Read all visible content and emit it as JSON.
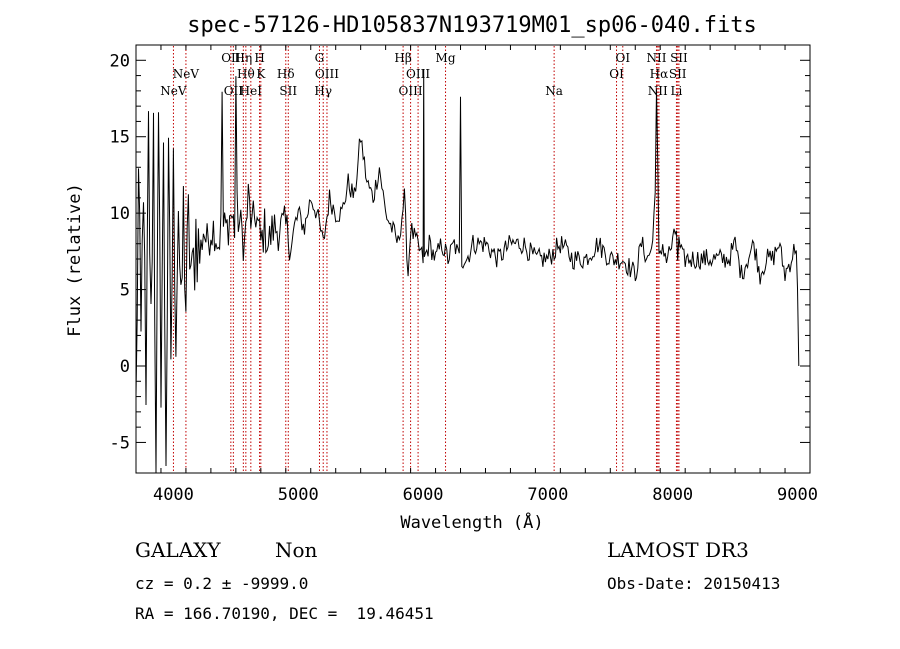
{
  "chart_data": {
    "type": "line",
    "title": "spec-57126-HD105837N193719M01_sp06-040.fits",
    "xlabel": "Wavelength (Å)",
    "ylabel": "Flux (relative)",
    "xlim": [
      3700,
      9100
    ],
    "ylim": [
      -7,
      21
    ],
    "xticks": [
      4000,
      5000,
      6000,
      7000,
      8000,
      9000
    ],
    "yticks": [
      -5,
      0,
      5,
      10,
      15,
      20
    ],
    "grid": false,
    "series": [
      {
        "name": "spectrum",
        "color": "#000000",
        "x": [
          3700,
          3720,
          3740,
          3760,
          3780,
          3800,
          3820,
          3840,
          3860,
          3880,
          3900,
          3920,
          3940,
          3960,
          3980,
          4000,
          4020,
          4040,
          4060,
          4080,
          4100,
          4120,
          4150,
          4180,
          4210,
          4240,
          4270,
          4300,
          4330,
          4360,
          4380,
          4390,
          4400,
          4430,
          4460,
          4490,
          4500,
          4510,
          4540,
          4570,
          4600,
          4630,
          4660,
          4700,
          4730,
          4760,
          4800,
          4850,
          4900,
          4950,
          5000,
          5050,
          5100,
          5150,
          5200,
          5250,
          5300,
          5350,
          5400,
          5450,
          5500,
          5550,
          5600,
          5650,
          5700,
          5750,
          5800,
          5850,
          5880,
          5900,
          5950,
          6000,
          6005,
          6010,
          6050,
          6100,
          6150,
          6200,
          6250,
          6290,
          6300,
          6310,
          6350,
          6400,
          6500,
          6600,
          6700,
          6800,
          6900,
          7000,
          7100,
          7200,
          7300,
          7400,
          7500,
          7600,
          7700,
          7750,
          7800,
          7840,
          7860,
          7870,
          7880,
          7890,
          7900,
          7920,
          7950,
          8000,
          8030,
          8040,
          8050,
          8080,
          8150,
          8250,
          8350,
          8450,
          8500,
          8550,
          8600,
          8650,
          8700,
          8750,
          8800,
          8850,
          8900,
          8950,
          8990,
          9000,
          9010
        ],
        "values": [
          -3,
          12,
          1,
          13,
          -4,
          15,
          2,
          16,
          -6,
          14,
          0,
          13,
          -5,
          12,
          1,
          12,
          3,
          11,
          2,
          10,
          4,
          9,
          5,
          9,
          7,
          9,
          8,
          9,
          9,
          8,
          9,
          18,
          9,
          9,
          10,
          9,
          19,
          10,
          9,
          8,
          11,
          9,
          10,
          8,
          9,
          8,
          9,
          9,
          9,
          8,
          10,
          9,
          11,
          10,
          8,
          11,
          10,
          10,
          12,
          11,
          15,
          12,
          11,
          13,
          10,
          9,
          8,
          11,
          6,
          9,
          8,
          7,
          19,
          7,
          8,
          7,
          8,
          7,
          8,
          7,
          18,
          7,
          7,
          8,
          8,
          7,
          8,
          8,
          7,
          7,
          8,
          7,
          7,
          8,
          7,
          7,
          6,
          8,
          7,
          8,
          12,
          18,
          13,
          7,
          7,
          8,
          7,
          8,
          9,
          7,
          8,
          7,
          7,
          7,
          7,
          7,
          8,
          6,
          7,
          8,
          6,
          7,
          7,
          8,
          6,
          7,
          8,
          5,
          0
        ],
        "values_note": "approximate; spectrum is noisy and rendered with added jitter from these anchor points"
      }
    ],
    "emission_lines": [
      {
        "name": "NeV",
        "wave": 4000,
        "row": 2
      },
      {
        "name": "NeV",
        "wave": 4100,
        "row": 1
      },
      {
        "name": "OII",
        "wave": 4460,
        "row": 0
      },
      {
        "name": "OII",
        "wave": 4480,
        "row": 2
      },
      {
        "name": "Hη",
        "wave": 4560,
        "row": 0
      },
      {
        "name": "Hθ",
        "wave": 4580,
        "row": 1
      },
      {
        "name": "HeI",
        "wave": 4620,
        "row": 2
      },
      {
        "name": "H",
        "wave": 4690,
        "row": 0
      },
      {
        "name": "K",
        "wave": 4700,
        "row": 1
      },
      {
        "name": "Hδ",
        "wave": 4900,
        "row": 1
      },
      {
        "name": "SII",
        "wave": 4920,
        "row": 2
      },
      {
        "name": "G",
        "wave": 5170,
        "row": 0
      },
      {
        "name": "OIII",
        "wave": 5230,
        "row": 1
      },
      {
        "name": "Hγ",
        "wave": 5200,
        "row": 2
      },
      {
        "name": "Hβ",
        "wave": 5840,
        "row": 0
      },
      {
        "name": "OIII",
        "wave": 5960,
        "row": 1
      },
      {
        "name": "OIII",
        "wave": 5900,
        "row": 2
      },
      {
        "name": "Mg",
        "wave": 6180,
        "row": 0
      },
      {
        "name": "Na",
        "wave": 7050,
        "row": 2
      },
      {
        "name": "OI",
        "wave": 7600,
        "row": 0
      },
      {
        "name": "OI",
        "wave": 7550,
        "row": 1
      },
      {
        "name": "NII",
        "wave": 7870,
        "row": 0
      },
      {
        "name": "Hα",
        "wave": 7890,
        "row": 1
      },
      {
        "name": "NII",
        "wave": 7880,
        "row": 2
      },
      {
        "name": "SII",
        "wave": 8050,
        "row": 0
      },
      {
        "name": "SII",
        "wave": 8040,
        "row": 1
      },
      {
        "name": "Li",
        "wave": 8030,
        "row": 2
      }
    ],
    "line_marker_color": "#c00000"
  },
  "info": {
    "object_class": "GALAXY",
    "subclass": "Non",
    "survey": "LAMOST DR3",
    "redshift_line": "cz = 0.2 ± -9999.0",
    "obs_date": "Obs-Date: 20150413",
    "coords": "RA = 166.70190, DEC =  19.46451"
  }
}
